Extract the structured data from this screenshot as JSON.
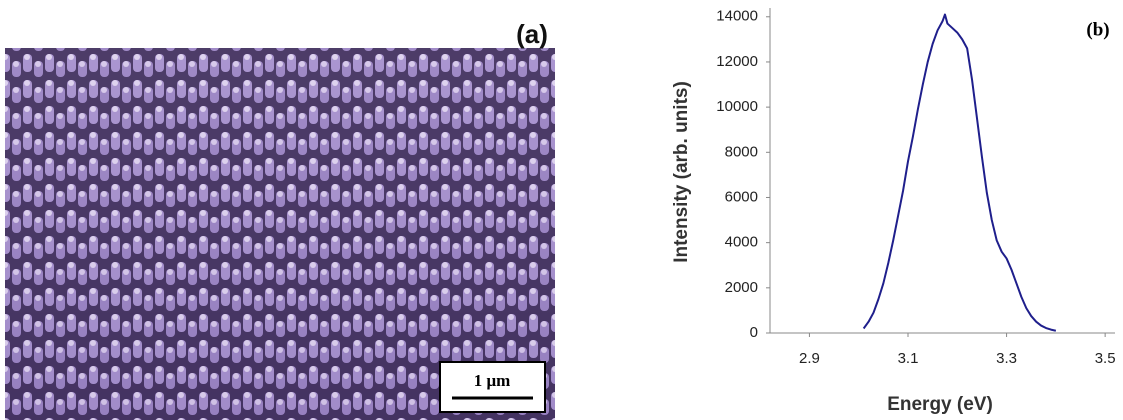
{
  "panel_a": {
    "label": "(a)",
    "scale_bar": "1 μm"
  },
  "chart_data": {
    "type": "line",
    "panel_label": "(b)",
    "xlabel": "Energy (eV)",
    "ylabel": "Intensity (arb. units)",
    "color": "#1f1f8c",
    "x": [
      3.01,
      3.02,
      3.03,
      3.04,
      3.05,
      3.06,
      3.07,
      3.08,
      3.09,
      3.1,
      3.11,
      3.12,
      3.13,
      3.14,
      3.15,
      3.16,
      3.17,
      3.175,
      3.18,
      3.19,
      3.2,
      3.21,
      3.22,
      3.23,
      3.24,
      3.25,
      3.26,
      3.27,
      3.28,
      3.29,
      3.3,
      3.31,
      3.32,
      3.33,
      3.34,
      3.35,
      3.36,
      3.37,
      3.38,
      3.39,
      3.4
    ],
    "values": [
      200,
      500,
      900,
      1500,
      2200,
      3100,
      4100,
      5200,
      6300,
      7600,
      8700,
      9900,
      11000,
      12000,
      12800,
      13400,
      13800,
      14100,
      13700,
      13500,
      13300,
      13000,
      12600,
      11200,
      9500,
      7800,
      6200,
      5000,
      4100,
      3600,
      3300,
      2800,
      2200,
      1600,
      1100,
      750,
      500,
      330,
      220,
      150,
      100
    ],
    "xlim": [
      2.82,
      3.52
    ],
    "xticks": [
      2.9,
      3.1,
      3.3,
      3.5
    ],
    "ylim": [
      0,
      14300
    ],
    "yticks": [
      0,
      2000,
      4000,
      6000,
      8000,
      10000,
      12000,
      14000
    ],
    "grid": false
  }
}
